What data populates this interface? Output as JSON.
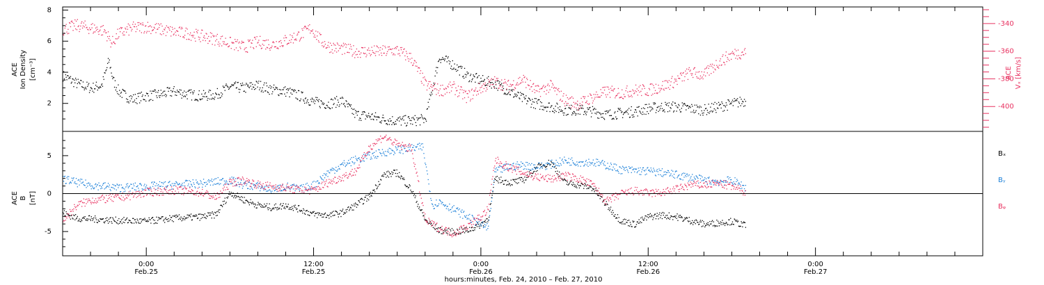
{
  "chart_data": [
    {
      "type": "scatter",
      "panel": "top",
      "left_axis": {
        "label_lines": [
          "ACE",
          "Ion Density"
        ],
        "unit": "[cm⁻³]",
        "ticks": [
          2,
          4,
          6,
          8
        ],
        "ylim": [
          0.2,
          8.2
        ]
      },
      "right_axis": {
        "label_lines": [
          "ACE"
        ],
        "unit": "Vₓ [km/s]",
        "ticks": [
          -340,
          -360,
          -380,
          -400
        ],
        "ylim": [
          -418,
          -328
        ],
        "color": "#e8305f"
      },
      "series": [
        {
          "axis": "left",
          "color": "#000000",
          "x": [
            -6,
            -5,
            -4,
            -3.2,
            -2.7,
            -2.4,
            -2,
            -1.5,
            -1,
            0,
            1,
            2,
            3,
            4,
            5,
            6,
            7,
            8,
            9,
            10,
            11,
            12,
            13,
            14,
            15,
            16,
            17,
            18,
            19,
            20,
            21,
            22,
            23,
            24,
            25,
            26,
            27,
            28,
            29,
            30,
            31,
            32,
            33,
            34,
            35,
            36,
            37,
            38,
            39,
            40,
            41,
            42,
            43
          ],
          "y": [
            3.8,
            3.3,
            3.0,
            3.2,
            4.8,
            3.5,
            2.8,
            2.5,
            2.3,
            2.5,
            2.6,
            2.8,
            2.6,
            2.5,
            2.6,
            3.1,
            3.0,
            3.2,
            2.9,
            2.8,
            2.5,
            2.1,
            2.0,
            2.2,
            1.3,
            1.2,
            1.0,
            0.9,
            0.9,
            1.0,
            5.0,
            4.5,
            3.8,
            3.5,
            3.3,
            2.8,
            2.3,
            2.0,
            1.8,
            1.6,
            1.6,
            1.5,
            1.3,
            1.4,
            1.5,
            1.7,
            1.8,
            1.8,
            1.7,
            1.6,
            1.8,
            2.0,
            2.2
          ]
        },
        {
          "axis": "right",
          "color": "#e8305f",
          "x": [
            -6,
            -5,
            -4,
            -3,
            -2.5,
            -2,
            -1,
            0,
            1,
            2,
            3,
            4,
            5,
            6,
            7,
            8,
            9,
            10,
            11,
            11.8,
            12.5,
            13,
            14,
            15,
            16,
            17,
            18,
            19,
            20,
            21,
            22,
            23,
            24,
            25,
            26,
            27,
            28,
            29,
            30,
            31,
            32,
            33,
            34,
            35,
            36,
            37,
            38,
            39,
            40,
            41,
            42,
            43
          ],
          "y": [
            -344,
            -341,
            -343,
            -345,
            -354,
            -347,
            -343,
            -342,
            -344,
            -346,
            -347,
            -349,
            -351,
            -354,
            -357,
            -353,
            -355,
            -352,
            -348,
            -343,
            -352,
            -356,
            -358,
            -360,
            -360,
            -360,
            -359,
            -365,
            -384,
            -388,
            -386,
            -393,
            -386,
            -382,
            -385,
            -380,
            -389,
            -385,
            -395,
            -398,
            -393,
            -389,
            -390,
            -388,
            -388,
            -385,
            -381,
            -375,
            -377,
            -368,
            -362,
            -360
          ]
        }
      ]
    },
    {
      "type": "scatter",
      "panel": "bottom",
      "left_axis": {
        "label_lines": [
          "ACE",
          "B"
        ],
        "unit": "[nT]",
        "ticks": [
          5,
          0,
          -5
        ],
        "ylim": [
          -8.2,
          8.2
        ]
      },
      "series": [
        {
          "name": "Bₓ",
          "color": "#000000",
          "x": [
            -6,
            -5,
            -4,
            -2,
            0,
            2,
            4,
            5,
            6,
            7,
            8,
            9,
            10,
            11,
            12,
            13,
            14,
            15,
            16,
            17,
            18,
            19,
            20,
            21,
            22,
            23,
            24,
            24.5,
            25,
            26,
            27,
            28,
            29,
            30,
            31,
            32,
            33,
            34,
            35,
            36,
            37,
            38,
            39,
            40,
            41,
            42,
            43
          ],
          "y": [
            -2.5,
            -3.2,
            -3.3,
            -3.5,
            -3.6,
            -3.2,
            -3.0,
            -2.7,
            0.2,
            -0.8,
            -1.5,
            -1.8,
            -1.5,
            -2.0,
            -2.7,
            -2.8,
            -2.5,
            -1.5,
            -0.3,
            2.5,
            2.8,
            0.5,
            -3.5,
            -4.8,
            -5.0,
            -4.8,
            -4.0,
            -3.2,
            2.0,
            1.5,
            1.8,
            3.5,
            4.2,
            1.5,
            1.2,
            0.8,
            -1.5,
            -3.5,
            -4.0,
            -3.0,
            -2.8,
            -3.0,
            -3.5,
            -4.0,
            -3.8,
            -3.6,
            -4.2
          ]
        },
        {
          "name": "Bᵧ",
          "color": "#1a7fd8",
          "x": [
            -6,
            -5,
            -4,
            -2,
            0,
            2,
            4,
            5,
            6,
            7,
            8,
            9,
            10,
            11,
            12,
            13,
            14,
            15,
            16,
            17,
            18,
            19,
            19.8,
            20.5,
            21,
            22,
            23,
            24,
            24.5,
            25,
            26,
            27,
            28,
            29,
            30,
            31,
            32,
            33,
            34,
            35,
            36,
            37,
            38,
            39,
            40,
            41,
            42,
            43
          ],
          "y": [
            2.0,
            1.5,
            1.2,
            0.8,
            1.0,
            1.2,
            1.4,
            1.6,
            1.8,
            1.2,
            1.0,
            0.5,
            1.0,
            0.6,
            1.2,
            2.8,
            3.8,
            4.5,
            5.0,
            5.5,
            5.8,
            6.0,
            6.2,
            -1.5,
            -1.0,
            -2.0,
            -3.0,
            -4.0,
            -4.5,
            3.0,
            3.6,
            3.8,
            3.6,
            3.9,
            4.4,
            4.2,
            4.2,
            3.8,
            3.2,
            3.1,
            3.0,
            2.8,
            2.5,
            2.2,
            1.8,
            1.6,
            1.8,
            0.8
          ]
        },
        {
          "name": "Bᵩ",
          "color": "#e8305f",
          "x": [
            -6,
            -5,
            -4,
            -2,
            0,
            2,
            4,
            5,
            6,
            7,
            8,
            9,
            10,
            11,
            12,
            13,
            14,
            15,
            16,
            17,
            18,
            19,
            20,
            21,
            22,
            23,
            24,
            24.5,
            25,
            26,
            27,
            28,
            29,
            30,
            31,
            32,
            33,
            34,
            35,
            36,
            37,
            38,
            39,
            40,
            41,
            42,
            43
          ],
          "y": [
            -3.5,
            -1.5,
            -0.8,
            -0.5,
            0.2,
            0.5,
            0.2,
            -0.5,
            1.5,
            1.8,
            1.2,
            1.0,
            0.8,
            0.5,
            0.5,
            1.5,
            2.2,
            3.0,
            6.2,
            7.6,
            6.5,
            6.0,
            -3.5,
            -4.5,
            -5.2,
            -4.2,
            -3.0,
            -2.0,
            4.5,
            3.5,
            2.8,
            2.2,
            2.0,
            2.4,
            2.0,
            1.2,
            -1.0,
            0.0,
            0.4,
            0.1,
            0.2,
            0.6,
            1.2,
            1.2,
            1.4,
            1.0,
            0.2
          ]
        }
      ]
    }
  ],
  "x_axis": {
    "xlim": [
      -6,
      60
    ],
    "ticks": [
      {
        "x": 0,
        "time": "0:00",
        "date": "Feb.25"
      },
      {
        "x": 12,
        "time": "12:00",
        "date": "Feb.25"
      },
      {
        "x": 24,
        "time": "0:00",
        "date": "Feb.26"
      },
      {
        "x": 36,
        "time": "12:00",
        "date": "Feb.26"
      },
      {
        "x": 48,
        "time": "0:00",
        "date": "Feb.27"
      }
    ],
    "xlabel": "hours:minutes, Feb. 24, 2010 – Feb. 27, 2010"
  }
}
